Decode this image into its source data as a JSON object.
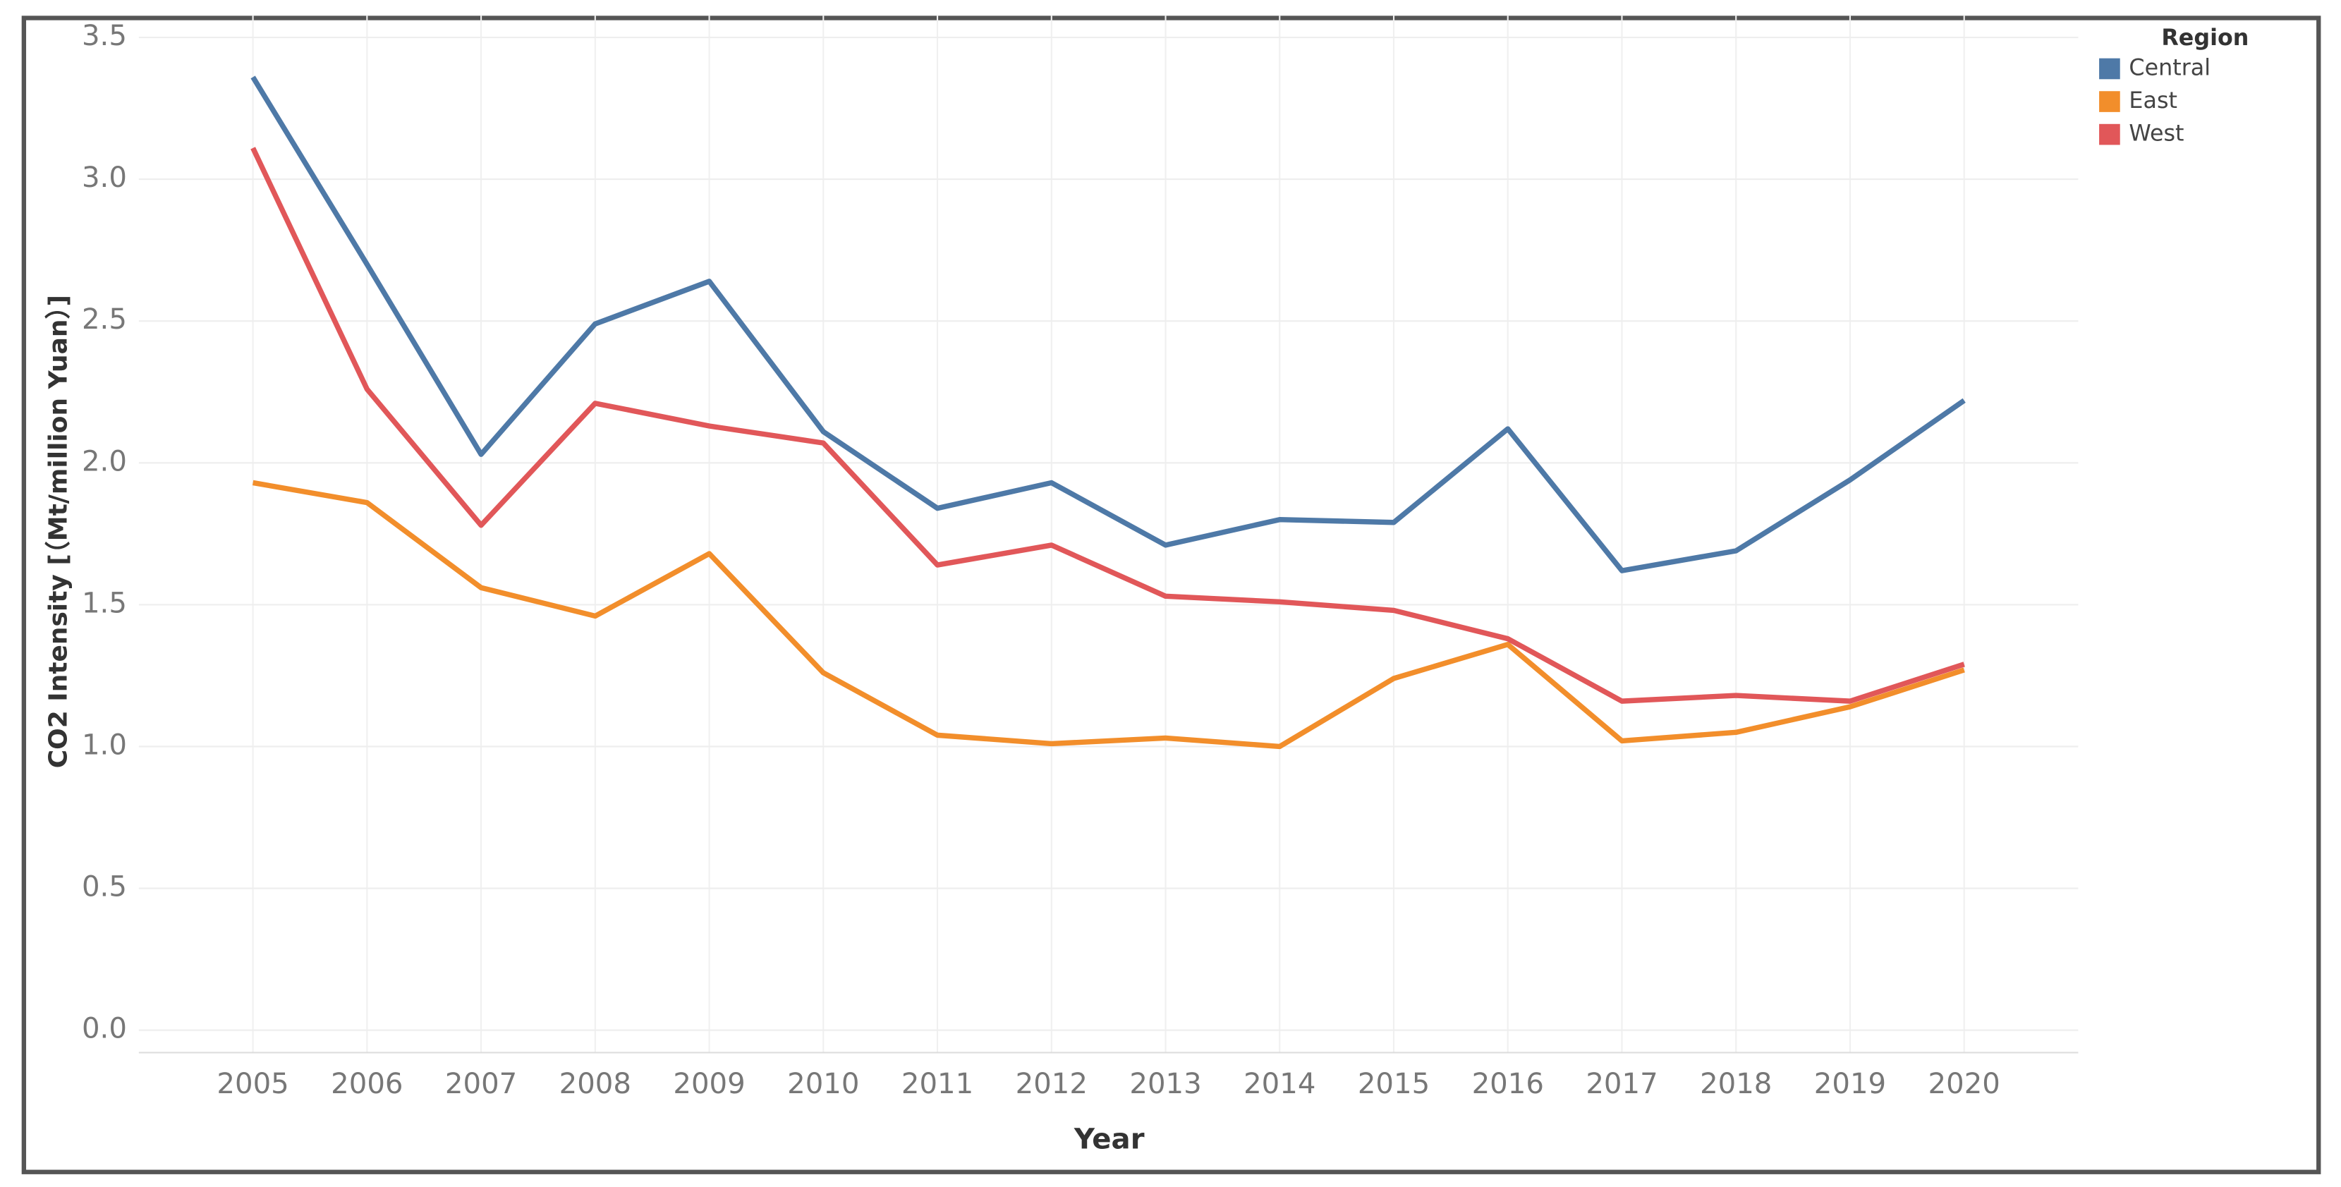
{
  "chart_data": {
    "type": "line",
    "x_label": "Year",
    "y_label": "CO2 Intensity [（Mt/million Yuan）]",
    "legend_title": "Region",
    "legend": "top-right",
    "grid": true,
    "categories": [
      "2005",
      "2006",
      "2007",
      "2008",
      "2009",
      "2010",
      "2011",
      "2012",
      "2013",
      "2014",
      "2015",
      "2016",
      "2017",
      "2018",
      "2019",
      "2020"
    ],
    "ylim": [
      0,
      3.5
    ],
    "yticks": [
      {
        "value": 0,
        "label": "0.0"
      },
      0.5,
      {
        "value": 1,
        "label": "1.0"
      },
      1.5,
      {
        "value": 2,
        "label": "2.0"
      },
      2.5,
      {
        "value": 3,
        "label": "3.0"
      },
      3.5
    ],
    "series": [
      {
        "name": "Central",
        "color": "#4e79a7",
        "values": [
          3.36,
          2.7,
          2.03,
          2.49,
          2.64,
          2.11,
          1.84,
          1.93,
          1.71,
          1.8,
          1.79,
          2.12,
          1.62,
          1.69,
          1.94,
          2.22
        ]
      },
      {
        "name": "East",
        "color": "#f28e2b",
        "values": [
          1.93,
          1.86,
          1.56,
          1.46,
          1.68,
          1.26,
          1.04,
          1.01,
          1.03,
          1.0,
          1.24,
          1.36,
          1.02,
          1.05,
          1.14,
          1.27
        ]
      },
      {
        "name": "West",
        "color": "#e15759",
        "values": [
          3.11,
          2.26,
          1.78,
          2.21,
          2.13,
          2.07,
          1.64,
          1.71,
          1.53,
          1.51,
          1.48,
          1.38,
          1.16,
          1.18,
          1.16,
          1.29
        ]
      }
    ]
  }
}
